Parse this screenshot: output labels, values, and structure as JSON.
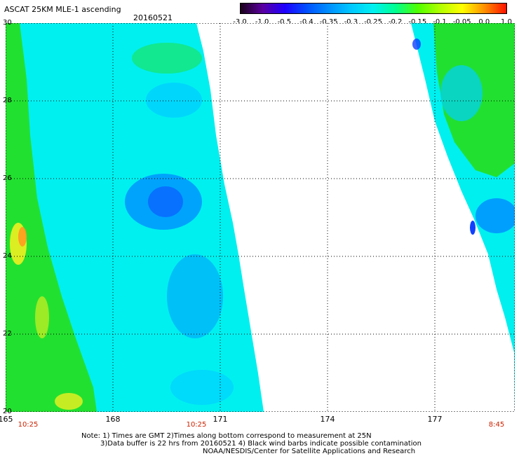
{
  "header": {
    "title": "ASCAT 25KM MLE-1 ascending",
    "date": "20160521"
  },
  "colorbar": {
    "labels": [
      "-3.0",
      "-1.0",
      "-0.5",
      "-0.4",
      "-0.35",
      "-0.3",
      "-0.25",
      "-0.2",
      "-0.15",
      "-0.1",
      "-0.05",
      "0.0",
      "1.0"
    ],
    "colors": [
      "#1a001a",
      "#5a00a0",
      "#1e00ff",
      "#0050ff",
      "#0090ff",
      "#00c8ff",
      "#00f0f0",
      "#00ff90",
      "#50ff00",
      "#b0ff00",
      "#ffff00",
      "#ff9000",
      "#ff1000"
    ]
  },
  "map": {
    "lat_labels": [
      "30",
      "28",
      "26",
      "24",
      "22",
      "20"
    ],
    "lon_labels": [
      "165",
      "168",
      "171",
      "174",
      "177"
    ],
    "time_labels": [
      "10:25",
      "10:25",
      "8:45"
    ],
    "swath_colors": {
      "west_edge": "#22e030",
      "yellow": "#f0f020",
      "orange": "#ff9a20",
      "cyan": "#00f0f0",
      "light_blue": "#00d0ff",
      "mid_blue": "#0090ff",
      "deep_blue": "#1040ff"
    }
  },
  "notes": {
    "line1": "Note: 1) Times are GMT 2)Times along bottom correspond to measurement at 25N",
    "line2": "3)Data buffer is 22 hrs from 20160521 4) Black wind barbs indicate possible contamination",
    "line3": "NOAA/NESDIS/Center for Satellite Applications and Research"
  }
}
